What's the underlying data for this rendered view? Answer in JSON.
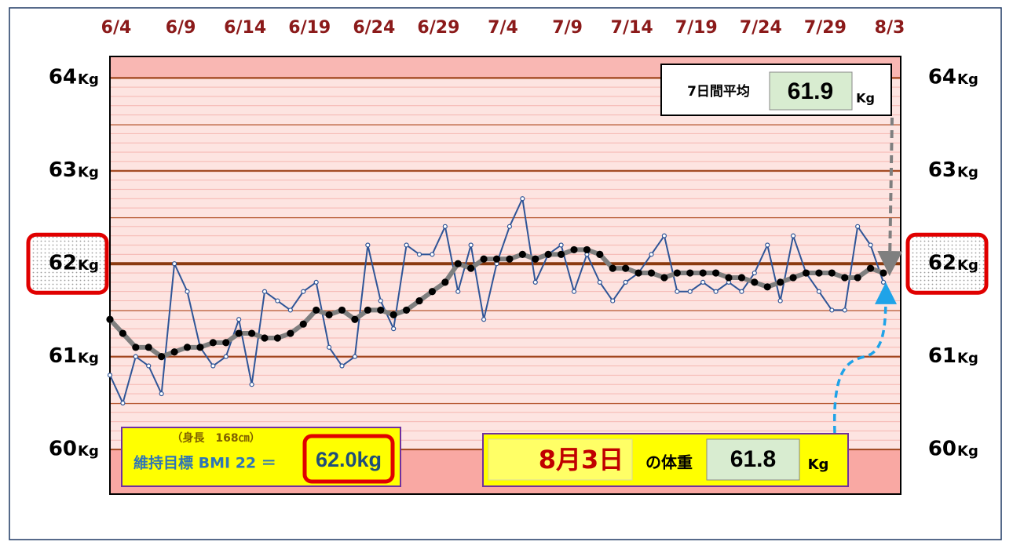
{
  "chart_data": {
    "type": "line",
    "categories": [
      "6/4",
      null,
      null,
      null,
      null,
      "6/9",
      null,
      null,
      null,
      null,
      "6/14",
      null,
      null,
      null,
      null,
      "6/19",
      null,
      null,
      null,
      null,
      "6/24",
      null,
      null,
      null,
      null,
      "6/29",
      null,
      null,
      null,
      null,
      "7/4",
      null,
      null,
      null,
      null,
      "7/9",
      null,
      null,
      null,
      null,
      "7/14",
      null,
      null,
      null,
      null,
      "7/19",
      null,
      null,
      null,
      null,
      "7/24",
      null,
      null,
      null,
      null,
      "7/29",
      null,
      null,
      null,
      null,
      "8/3"
    ],
    "series": [
      {
        "color": "#2f5597",
        "values": [
          60.8,
          60.5,
          61.0,
          60.9,
          60.6,
          62.0,
          61.7,
          61.1,
          60.9,
          61.0,
          61.4,
          60.7,
          61.7,
          61.6,
          61.5,
          61.7,
          61.8,
          61.1,
          60.9,
          61.0,
          62.2,
          61.6,
          61.3,
          62.2,
          62.1,
          62.1,
          62.4,
          61.7,
          62.2,
          61.4,
          62.0,
          62.4,
          62.7,
          61.8,
          62.1,
          62.2,
          61.7,
          62.1,
          61.8,
          61.6,
          61.8,
          61.9,
          62.1,
          62.3,
          61.7,
          61.7,
          61.8,
          61.7,
          61.8,
          61.7,
          61.9,
          62.2,
          61.6,
          62.3,
          61.9,
          61.7,
          61.5,
          61.5,
          62.4,
          62.2,
          61.8
        ]
      },
      {
        "color": "#7f7f7f",
        "values": [
          61.4,
          61.25,
          61.1,
          61.1,
          61.0,
          61.05,
          61.1,
          61.1,
          61.15,
          61.15,
          61.25,
          61.25,
          61.2,
          61.2,
          61.25,
          61.35,
          61.5,
          61.45,
          61.5,
          61.4,
          61.5,
          61.5,
          61.45,
          61.5,
          61.6,
          61.7,
          61.8,
          62.0,
          61.95,
          62.05,
          62.05,
          62.05,
          62.1,
          62.05,
          62.1,
          62.1,
          62.15,
          62.15,
          62.1,
          61.95,
          61.95,
          61.9,
          61.9,
          61.85,
          61.9,
          61.9,
          61.9,
          61.9,
          61.85,
          61.85,
          61.8,
          61.75,
          61.8,
          61.85,
          61.9,
          61.9,
          61.9,
          61.85,
          61.85,
          61.95,
          61.9
        ]
      }
    ],
    "ylim": [
      59.52,
      64.23
    ],
    "yticks": [
      60,
      61,
      62,
      63,
      64
    ],
    "y_unit": "Kg",
    "target": {
      "value": 62,
      "label": "62.0kg"
    },
    "average_box": {
      "label": "7日間平均",
      "value": 61.9
    },
    "bmi_box": {
      "height": "（身長　168㎝）",
      "label": "維持目標 BMI 22 ＝"
    },
    "latest_box": {
      "date": "8月3日",
      "label": "の体重",
      "value": 61.8
    }
  }
}
